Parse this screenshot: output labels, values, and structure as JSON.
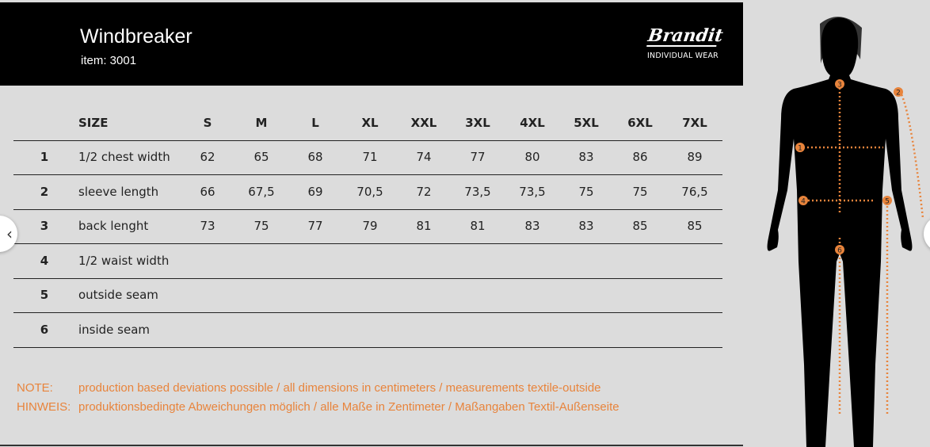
{
  "header": {
    "title": "Windbreaker",
    "item": "item: 3001",
    "brand": "Brandit",
    "brand_sub": "INDIVIDUAL WEAR"
  },
  "table": {
    "size_label": "SIZE",
    "sizes": [
      "S",
      "M",
      "L",
      "XL",
      "XXL",
      "3XL",
      "4XL",
      "5XL",
      "6XL",
      "7XL"
    ],
    "rows": [
      {
        "num": "1",
        "label": "1/2 chest width",
        "values": [
          "62",
          "65",
          "68",
          "71",
          "74",
          "77",
          "80",
          "83",
          "86",
          "89"
        ]
      },
      {
        "num": "2",
        "label": "sleeve length",
        "values": [
          "66",
          "67,5",
          "69",
          "70,5",
          "72",
          "73,5",
          "73,5",
          "75",
          "75",
          "76,5"
        ]
      },
      {
        "num": "3",
        "label": "back lenght",
        "values": [
          "73",
          "75",
          "77",
          "79",
          "81",
          "81",
          "83",
          "83",
          "85",
          "85"
        ]
      },
      {
        "num": "4",
        "label": "1/2 waist width",
        "values": []
      },
      {
        "num": "5",
        "label": "outside seam",
        "values": []
      },
      {
        "num": "6",
        "label": "inside seam",
        "values": []
      }
    ]
  },
  "notes": [
    {
      "key": "NOTE:",
      "text": "production based deviations possible / all dimensions in centimeters / measurements textile-outside"
    },
    {
      "key": "HINWEIS:",
      "text": "produktionsbedingte Abweichungen möglich / alle Maße in Zentimeter / Maßangaben Textil-Außenseite"
    }
  ],
  "figure": {
    "markers": [
      "1",
      "2",
      "3",
      "4",
      "5",
      "6"
    ],
    "accent": "#e8843c"
  },
  "nav": {
    "prev_icon": "chevron-left-icon",
    "next_icon": "chevron-right-icon"
  }
}
